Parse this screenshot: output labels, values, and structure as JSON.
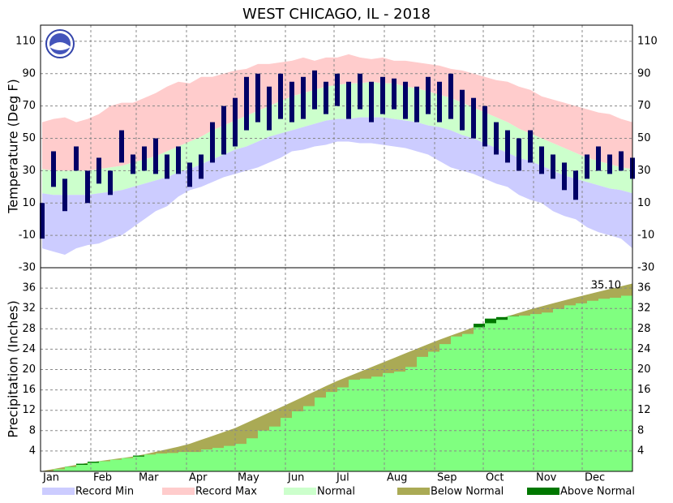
{
  "title": "WEST CHICAGO, IL - 2018",
  "legend": [
    {
      "label": "Record Min",
      "color": "#ccccff"
    },
    {
      "label": "Record Max",
      "color": "#ffcccc"
    },
    {
      "label": "Normal",
      "color": "#ccffcc"
    },
    {
      "label": "Below Normal",
      "color": "#aaaa55"
    },
    {
      "label": "Above Normal",
      "color": "#007700"
    }
  ],
  "chart_data": [
    {
      "type": "band",
      "y_label": "Temperature (Deg F)",
      "x": [
        1,
        8,
        15,
        22,
        29,
        36,
        43,
        50,
        57,
        64,
        71,
        78,
        85,
        92,
        99,
        106,
        113,
        120,
        127,
        134,
        141,
        148,
        155,
        162,
        169,
        176,
        183,
        190,
        197,
        204,
        211,
        218,
        225,
        232,
        239,
        246,
        253,
        260,
        267,
        274,
        281,
        288,
        295,
        302,
        309,
        316,
        323,
        330,
        337,
        344,
        351,
        358,
        365
      ],
      "xlim": [
        0,
        365
      ],
      "ylim": [
        -30,
        120
      ],
      "yticks": [
        -30,
        -10,
        10,
        30,
        50,
        70,
        90,
        110
      ],
      "grid": true,
      "record_max": [
        60,
        62,
        63,
        60,
        62,
        65,
        70,
        72,
        72,
        75,
        78,
        82,
        85,
        84,
        88,
        88,
        90,
        92,
        93,
        96,
        96,
        97,
        98,
        100,
        98,
        100,
        100,
        102,
        100,
        99,
        100,
        98,
        98,
        97,
        96,
        95,
        93,
        92,
        90,
        88,
        86,
        85,
        82,
        80,
        76,
        74,
        72,
        70,
        68,
        66,
        65,
        62,
        60
      ],
      "normal_high": [
        31,
        30,
        30,
        30,
        30,
        31,
        32,
        33,
        35,
        37,
        39,
        42,
        45,
        48,
        51,
        55,
        58,
        61,
        64,
        67,
        70,
        73,
        76,
        78,
        80,
        82,
        83,
        84,
        84,
        85,
        84,
        84,
        82,
        81,
        79,
        77,
        75,
        72,
        69,
        66,
        63,
        60,
        56,
        53,
        50,
        47,
        44,
        41,
        38,
        36,
        34,
        32,
        31
      ],
      "normal_low": [
        16,
        15,
        15,
        15,
        15,
        16,
        17,
        18,
        20,
        22,
        24,
        26,
        29,
        31,
        34,
        37,
        40,
        43,
        45,
        48,
        51,
        53,
        55,
        57,
        59,
        61,
        62,
        62,
        63,
        63,
        63,
        62,
        61,
        60,
        58,
        57,
        55,
        52,
        50,
        47,
        44,
        41,
        38,
        36,
        33,
        30,
        27,
        25,
        23,
        21,
        19,
        18,
        16
      ],
      "record_min": [
        -18,
        -20,
        -22,
        -18,
        -16,
        -15,
        -12,
        -10,
        -5,
        0,
        5,
        8,
        14,
        18,
        20,
        23,
        26,
        28,
        30,
        32,
        35,
        38,
        42,
        43,
        45,
        46,
        48,
        48,
        47,
        47,
        46,
        45,
        44,
        42,
        40,
        36,
        32,
        30,
        28,
        25,
        22,
        20,
        15,
        12,
        10,
        5,
        2,
        0,
        -5,
        -8,
        -10,
        -12,
        -18
      ],
      "observed_color": "#000066",
      "observed_high": [
        10,
        42,
        25,
        45,
        30,
        38,
        30,
        55,
        40,
        45,
        50,
        40,
        45,
        35,
        40,
        60,
        70,
        75,
        88,
        90,
        82,
        90,
        85,
        88,
        92,
        85,
        90,
        85,
        90,
        85,
        88,
        87,
        85,
        82,
        88,
        85,
        90,
        80,
        75,
        70,
        60,
        55,
        50,
        55,
        45,
        40,
        35,
        30,
        40,
        45,
        40,
        42,
        38
      ],
      "observed_low": [
        -12,
        20,
        5,
        30,
        10,
        22,
        15,
        35,
        28,
        30,
        28,
        25,
        28,
        20,
        25,
        35,
        40,
        45,
        55,
        60,
        55,
        62,
        60,
        62,
        68,
        65,
        70,
        62,
        68,
        60,
        65,
        68,
        62,
        60,
        65,
        60,
        62,
        55,
        50,
        45,
        40,
        35,
        30,
        35,
        28,
        25,
        18,
        12,
        25,
        30,
        28,
        30,
        25
      ]
    },
    {
      "type": "area",
      "y_label": "Precipitation (Inches)",
      "x": [
        1,
        8,
        15,
        22,
        29,
        36,
        43,
        50,
        57,
        64,
        71,
        78,
        85,
        92,
        99,
        106,
        113,
        120,
        127,
        134,
        141,
        148,
        155,
        162,
        169,
        176,
        183,
        190,
        197,
        204,
        211,
        218,
        225,
        232,
        239,
        246,
        253,
        260,
        267,
        274,
        281,
        288,
        295,
        302,
        309,
        316,
        323,
        330,
        337,
        344,
        351,
        358,
        365
      ],
      "xlim": [
        0,
        365
      ],
      "xticks": [
        {
          "value": 0,
          "label": "Jan"
        },
        {
          "value": 31,
          "label": "Feb"
        },
        {
          "value": 59,
          "label": "Mar"
        },
        {
          "value": 90,
          "label": "Apr"
        },
        {
          "value": 120,
          "label": "May"
        },
        {
          "value": 151,
          "label": "Jun"
        },
        {
          "value": 181,
          "label": "Jul"
        },
        {
          "value": 212,
          "label": "Aug"
        },
        {
          "value": 243,
          "label": "Sep"
        },
        {
          "value": 273,
          "label": "Oct"
        },
        {
          "value": 304,
          "label": "Nov"
        },
        {
          "value": 334,
          "label": "Dec"
        }
      ],
      "ylim": [
        0,
        40
      ],
      "yticks": [
        4,
        8,
        12,
        16,
        20,
        24,
        28,
        32,
        36
      ],
      "grid": true,
      "normal": [
        0.06,
        0.46,
        0.87,
        1.28,
        1.68,
        2.01,
        2.31,
        2.61,
        2.91,
        3.35,
        3.85,
        4.35,
        4.85,
        5.42,
        6.19,
        6.96,
        7.73,
        8.5,
        9.52,
        10.53,
        11.55,
        12.56,
        13.6,
        14.65,
        15.7,
        16.75,
        17.76,
        18.66,
        19.56,
        20.47,
        21.37,
        22.27,
        23.18,
        24.08,
        24.98,
        25.85,
        26.67,
        27.48,
        28.3,
        29.1,
        29.77,
        30.45,
        31.13,
        31.81,
        32.42,
        33.0,
        33.58,
        34.17,
        34.73,
        35.27,
        35.82,
        36.36,
        36.9
      ],
      "observed_color": "#80ff80",
      "observed": [
        0.0,
        0.4,
        0.9,
        1.5,
        1.9,
        2.0,
        2.3,
        2.6,
        3.1,
        3.3,
        3.5,
        3.6,
        3.8,
        3.8,
        4.3,
        4.6,
        5.0,
        5.4,
        6.5,
        8.0,
        8.8,
        10.5,
        11.8,
        12.8,
        14.5,
        15.6,
        16.5,
        18.0,
        18.2,
        18.6,
        19.3,
        19.6,
        20.5,
        22.5,
        23.5,
        25.0,
        26.5,
        27.0,
        29.0,
        30.0,
        30.3,
        30.5,
        30.6,
        30.9,
        31.2,
        31.9,
        32.6,
        33.0,
        33.5,
        33.9,
        34.1,
        34.5,
        35.1
      ],
      "annotation": "35.10"
    }
  ]
}
